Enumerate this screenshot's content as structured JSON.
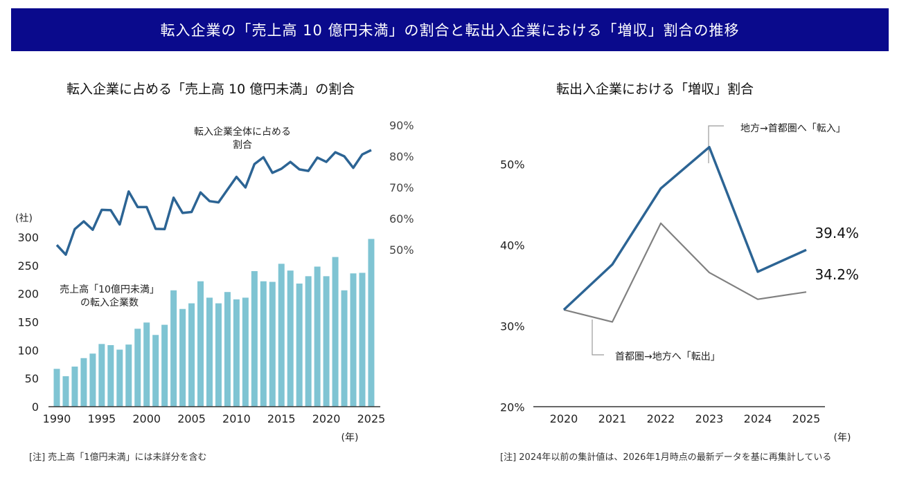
{
  "header": {
    "title": "転入企業の「売上高 10 億円未満」の割合と転出入企業における「増収」割合の推移"
  },
  "colors": {
    "banner": "#0a0a8c",
    "bar": "#7fc4d3",
    "line_primary": "#2c6494",
    "line_secondary": "#808080"
  },
  "chart_data": [
    {
      "type": "bar",
      "title": "転入企業に占める「売上高 10 億円未満」の割合",
      "xlabel": "(年)",
      "ylabel": "(社)",
      "ylim": [
        0,
        300
      ],
      "yticks": [
        0,
        50,
        100,
        150,
        200,
        250,
        300
      ],
      "xticks": [
        "1990",
        "1995",
        "2000",
        "2005",
        "2010",
        "2015",
        "2020",
        "2025"
      ],
      "categories": [
        1990,
        1991,
        1992,
        1993,
        1994,
        1995,
        1996,
        1997,
        1998,
        1999,
        2000,
        2001,
        2002,
        2003,
        2004,
        2005,
        2006,
        2007,
        2008,
        2009,
        2010,
        2011,
        2012,
        2013,
        2014,
        2015,
        2016,
        2017,
        2018,
        2019,
        2020,
        2021,
        2022,
        2023,
        2024,
        2025
      ],
      "series": [
        {
          "name": "売上高「10億円未満」の転入企業数",
          "label_lines": [
            "売上高「10億円未満」",
            "の転入企業数"
          ],
          "axis": "left",
          "type": "bar",
          "values": [
            67,
            54,
            71,
            86,
            94,
            111,
            109,
            101,
            110,
            138,
            149,
            127,
            145,
            206,
            173,
            183,
            222,
            193,
            183,
            203,
            190,
            193,
            240,
            222,
            221,
            253,
            241,
            218,
            231,
            248,
            231,
            265,
            206,
            236,
            237,
            297
          ]
        },
        {
          "name": "転入企業全体に占める割合",
          "label_lines": [
            "転入企業全体に占める",
            "割合"
          ],
          "axis": "right",
          "type": "line",
          "unit": "%",
          "values": [
            51.5,
            48.4,
            56.6,
            59.1,
            56.4,
            62.8,
            62.7,
            58.1,
            68.7,
            63.7,
            63.7,
            56.7,
            56.6,
            66.7,
            61.8,
            62.1,
            68.4,
            65.6,
            65.2,
            69.3,
            73.4,
            70.0,
            77.5,
            79.7,
            74.7,
            76.0,
            78.2,
            75.8,
            75.3,
            79.6,
            78.2,
            81.3,
            80.0,
            76.3,
            80.6,
            82.0
          ]
        }
      ],
      "right_axis": {
        "ylim": [
          50,
          90
        ],
        "ticks": [
          "50%",
          "60%",
          "70%",
          "80%",
          "90%"
        ]
      },
      "note": "[注] 売上高「1億円未満」には未詳分を含む"
    },
    {
      "type": "line",
      "title": "転出入企業における「増収」割合",
      "xlabel": "(年)",
      "ylabel": "",
      "ylim": [
        20,
        55
      ],
      "yticks": [
        "20%",
        "30%",
        "40%",
        "50%"
      ],
      "categories": [
        "2020",
        "2021",
        "2022",
        "2023",
        "2024",
        "2025"
      ],
      "series": [
        {
          "name": "地方→首都圏へ「転入」",
          "color": "#2c6494",
          "values": [
            32.0,
            37.6,
            47.0,
            52.1,
            36.7,
            39.4
          ],
          "end_label": "39.4%"
        },
        {
          "name": "首都圏→地方へ「転出」",
          "color": "#808080",
          "values": [
            32.0,
            30.5,
            42.7,
            36.6,
            33.3,
            34.2
          ],
          "end_label": "34.2%"
        }
      ],
      "note": "[注] 2024年以前の集計値は、2026年1月時点の最新データを基に再集計している"
    }
  ]
}
